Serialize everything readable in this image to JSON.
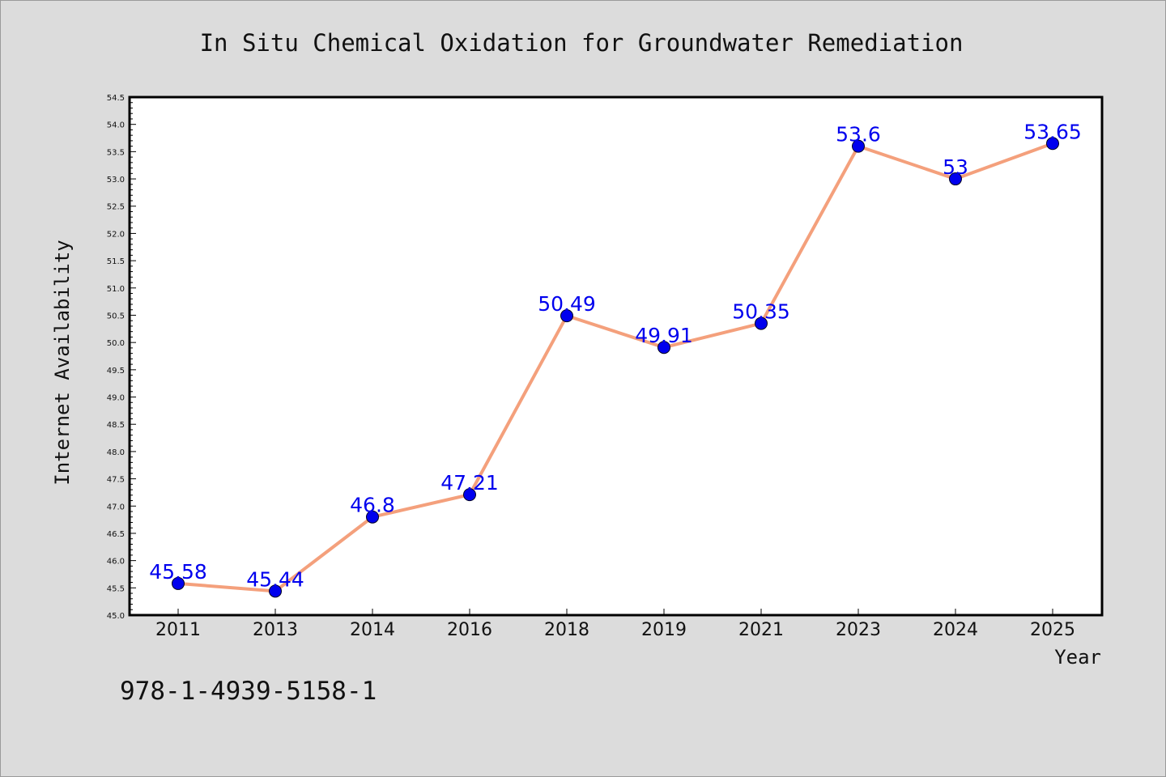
{
  "chart_data": {
    "type": "line",
    "title": "In Situ Chemical Oxidation for Groundwater Remediation",
    "xlabel": "Year",
    "ylabel": "Internet Availability",
    "categories": [
      "2011",
      "2013",
      "2014",
      "2016",
      "2018",
      "2019",
      "2021",
      "2023",
      "2024",
      "2025"
    ],
    "series": [
      {
        "values": [
          45.58,
          45.44,
          46.8,
          47.21,
          50.49,
          49.91,
          50.35,
          53.6,
          53,
          53.65
        ],
        "data_labels": [
          "45.58",
          "45.44",
          "46.8",
          "47.21",
          "50.49",
          "49.91",
          "50.35",
          "53.6",
          "53",
          "53.65"
        ],
        "line_color": "#f4a07c",
        "marker_color": "#0000ee",
        "label_color": "#0000ee"
      }
    ],
    "ylim": [
      45.0,
      54.5
    ],
    "yticks": [
      "45.0",
      "45.5",
      "46.0",
      "46.5",
      "47.0",
      "47.5",
      "48.0",
      "48.5",
      "49.0",
      "49.5",
      "50.0",
      "50.5",
      "51.0",
      "51.5",
      "52.0",
      "52.5",
      "53.0",
      "53.5",
      "54.0",
      "54.5"
    ],
    "grid": false,
    "legend": "none",
    "background_color": "#dcdcdc",
    "plot_background_color": "#ffffff"
  },
  "note": "978-1-4939-5158-1"
}
